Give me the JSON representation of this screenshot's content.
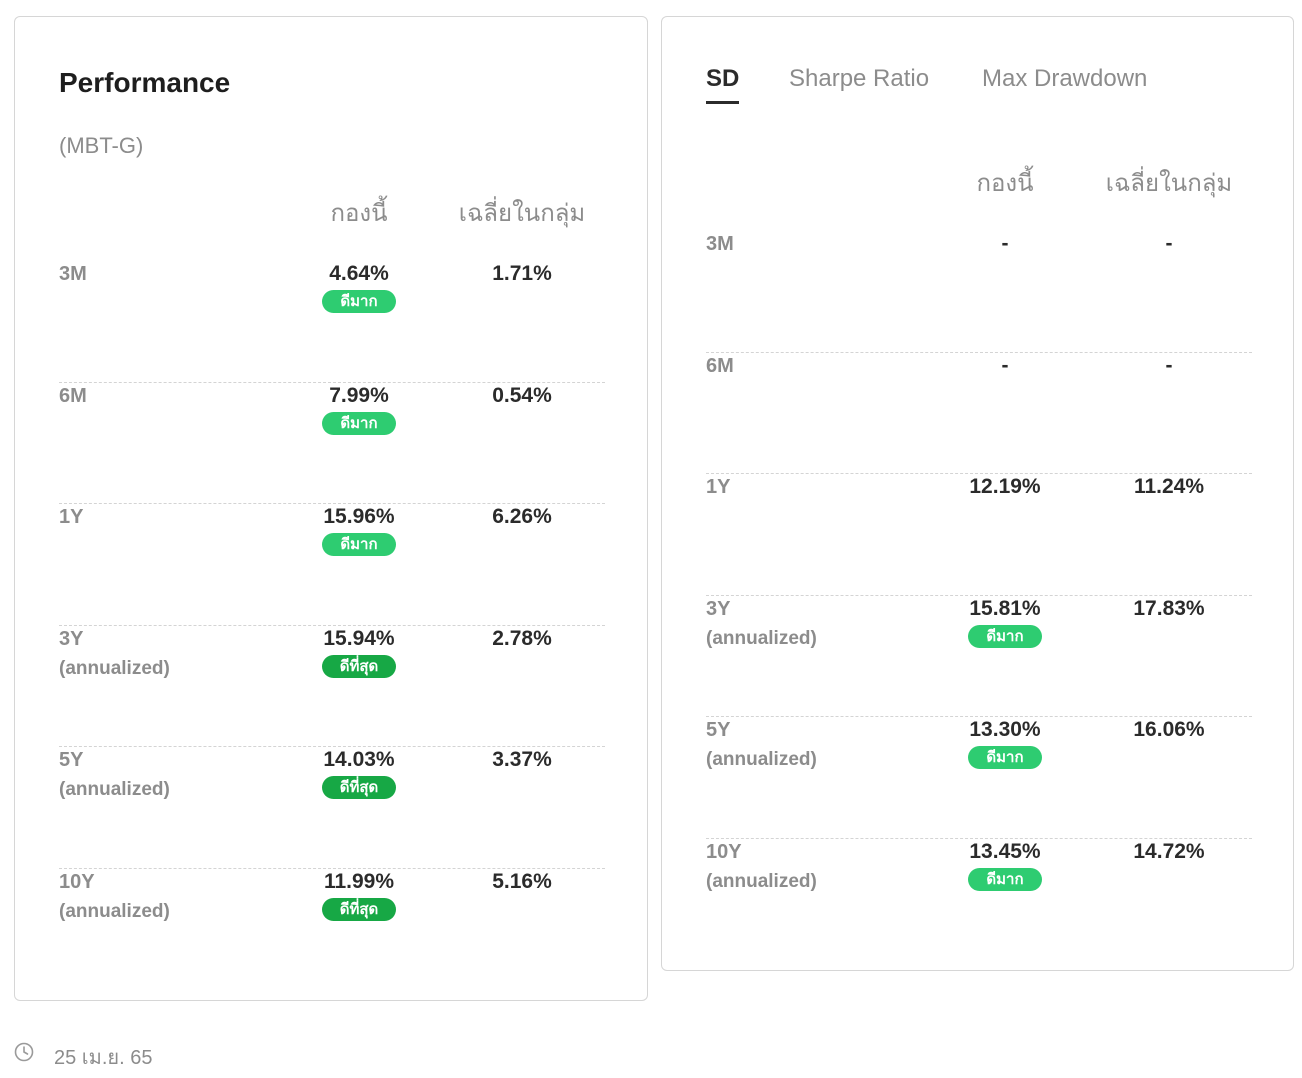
{
  "performance": {
    "title": "Performance",
    "subtitle": "(MBT-G)",
    "columns": {
      "fund": "กองนี้",
      "category_avg": "เฉลี่ยในกลุ่ม"
    },
    "rows": [
      {
        "label": "3M",
        "sub": "",
        "fund": "4.64%",
        "avg": "1.71%",
        "badge": "ดีมาก",
        "badge_type": "good"
      },
      {
        "label": "6M",
        "sub": "",
        "fund": "7.99%",
        "avg": "0.54%",
        "badge": "ดีมาก",
        "badge_type": "good"
      },
      {
        "label": "1Y",
        "sub": "",
        "fund": "15.96%",
        "avg": "6.26%",
        "badge": "ดีมาก",
        "badge_type": "good"
      },
      {
        "label": "3Y",
        "sub": "(annualized)",
        "fund": "15.94%",
        "avg": "2.78%",
        "badge": "ดีที่สุด",
        "badge_type": "best"
      },
      {
        "label": "5Y",
        "sub": "(annualized)",
        "fund": "14.03%",
        "avg": "3.37%",
        "badge": "ดีที่สุด",
        "badge_type": "best"
      },
      {
        "label": "10Y",
        "sub": "(annualized)",
        "fund": "11.99%",
        "avg": "5.16%",
        "badge": "ดีที่สุด",
        "badge_type": "best"
      }
    ]
  },
  "risk": {
    "tabs": [
      {
        "label": "SD",
        "active": true
      },
      {
        "label": "Sharpe Ratio",
        "active": false
      },
      {
        "label": "Max Drawdown",
        "active": false
      }
    ],
    "columns": {
      "fund": "กองนี้",
      "category_avg": "เฉลี่ยในกลุ่ม"
    },
    "rows": [
      {
        "label": "3M",
        "sub": "",
        "fund": "-",
        "avg": "-",
        "badge": "",
        "badge_type": ""
      },
      {
        "label": "6M",
        "sub": "",
        "fund": "-",
        "avg": "-",
        "badge": "",
        "badge_type": ""
      },
      {
        "label": "1Y",
        "sub": "",
        "fund": "12.19%",
        "avg": "11.24%",
        "badge": "",
        "badge_type": ""
      },
      {
        "label": "3Y",
        "sub": "(annualized)",
        "fund": "15.81%",
        "avg": "17.83%",
        "badge": "ดีมาก",
        "badge_type": "good"
      },
      {
        "label": "5Y",
        "sub": "(annualized)",
        "fund": "13.30%",
        "avg": "16.06%",
        "badge": "ดีมาก",
        "badge_type": "good"
      },
      {
        "label": "10Y",
        "sub": "(annualized)",
        "fund": "13.45%",
        "avg": "14.72%",
        "badge": "ดีมาก",
        "badge_type": "good"
      }
    ]
  },
  "footer": {
    "date": "25 เม.ย. 65",
    "icon": "clock-icon"
  },
  "colors": {
    "badge_good": "#2ecc71",
    "badge_best": "#17a845",
    "muted_text": "#8c8c8c",
    "value_text": "#2b2b2b"
  }
}
